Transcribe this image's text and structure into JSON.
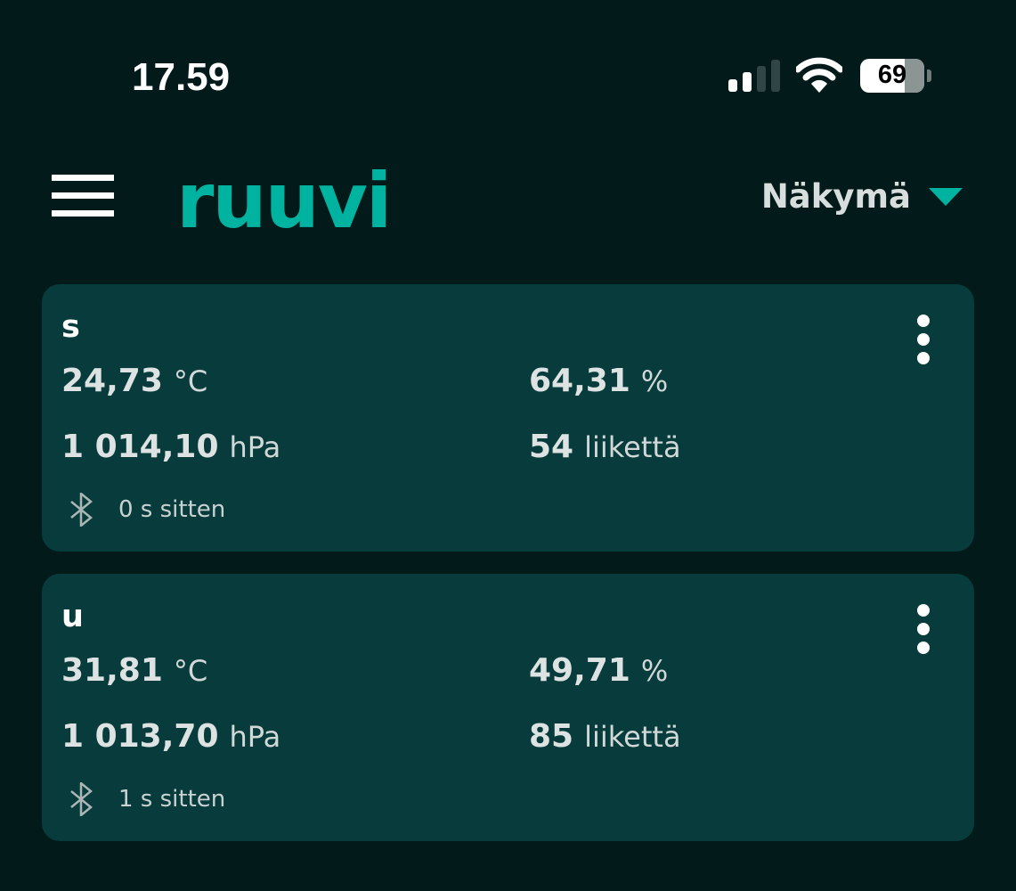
{
  "status_bar": {
    "time": "17.59",
    "battery": "69",
    "battery_level_percent": 69,
    "signal_bars": 2,
    "signal_bars_total": 4
  },
  "header": {
    "logo": "ruuvi",
    "view_label": "Näkymä",
    "menu_icon": "hamburger-icon",
    "accent": "#00b3a0"
  },
  "sensors": [
    {
      "name": "s",
      "temperature": "24,73",
      "temperature_unit": "°C",
      "humidity": "64,31",
      "humidity_unit": "%",
      "pressure": "1 014,10",
      "pressure_unit": "hPa",
      "movement": "54",
      "movement_unit": "liikettä",
      "updated": "0 s sitten"
    },
    {
      "name": "u",
      "temperature": "31,81",
      "temperature_unit": "°C",
      "humidity": "49,71",
      "humidity_unit": "%",
      "pressure": "1 013,70",
      "pressure_unit": "hPa",
      "movement": "85",
      "movement_unit": "liikettä",
      "updated": "1 s sitten"
    }
  ]
}
